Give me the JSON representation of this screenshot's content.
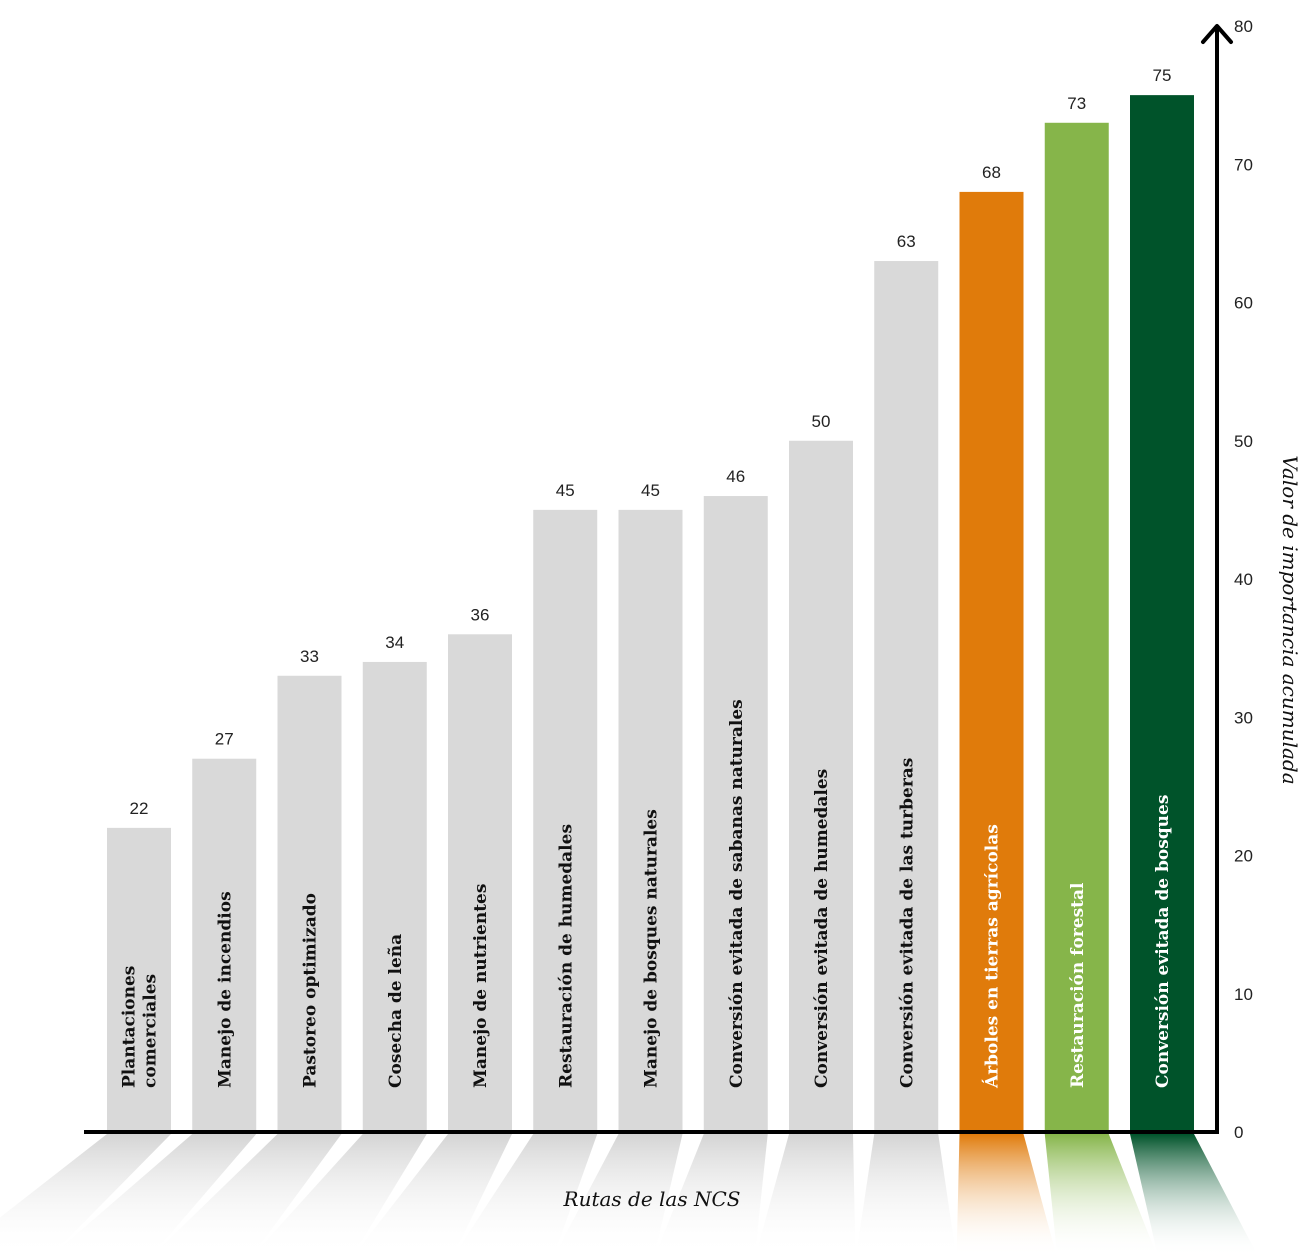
{
  "chart_data": {
    "type": "bar",
    "categories": [
      [
        "Plantaciones",
        "comerciales"
      ],
      [
        "Manejo de incendios"
      ],
      [
        "Pastoreo optimizado"
      ],
      [
        "Cosecha de leña"
      ],
      [
        "Manejo de nutrientes"
      ],
      [
        "Restauración de humedales"
      ],
      [
        "Manejo de bosques naturales"
      ],
      [
        "Conversión evitada de sabanas naturales"
      ],
      [
        "Conversión evitada de humedales"
      ],
      [
        "Conversión evitada de las turberas"
      ],
      [
        "Árboles en tierras agrícolas"
      ],
      [
        "Restauración forestal"
      ],
      [
        "Conversión evitada de bosques"
      ]
    ],
    "values": [
      22,
      27,
      33,
      34,
      36,
      45,
      45,
      46,
      50,
      63,
      68,
      73,
      75
    ],
    "value_labels": [
      "22",
      "27",
      "33",
      "34",
      "36",
      "45",
      "45",
      "46",
      "50",
      "63",
      "68",
      "73",
      "75"
    ],
    "bar_colors": [
      "#d9d9d9",
      "#d9d9d9",
      "#d9d9d9",
      "#d9d9d9",
      "#d9d9d9",
      "#d9d9d9",
      "#d9d9d9",
      "#d9d9d9",
      "#d9d9d9",
      "#d9d9d9",
      "#e07b0b",
      "#86b54a",
      "#00532a"
    ],
    "label_colors": [
      "#111111",
      "#111111",
      "#111111",
      "#111111",
      "#111111",
      "#111111",
      "#111111",
      "#111111",
      "#111111",
      "#111111",
      "#ffffff",
      "#ffffff",
      "#ffffff"
    ],
    "xlabel": "Rutas de las NCS",
    "ylabel": "Valor de importancia acumulada",
    "ylim": [
      0,
      80
    ],
    "yticks": [
      0,
      10,
      20,
      30,
      40,
      50,
      60,
      70,
      80
    ],
    "axis_position": "right",
    "grid": false
  }
}
